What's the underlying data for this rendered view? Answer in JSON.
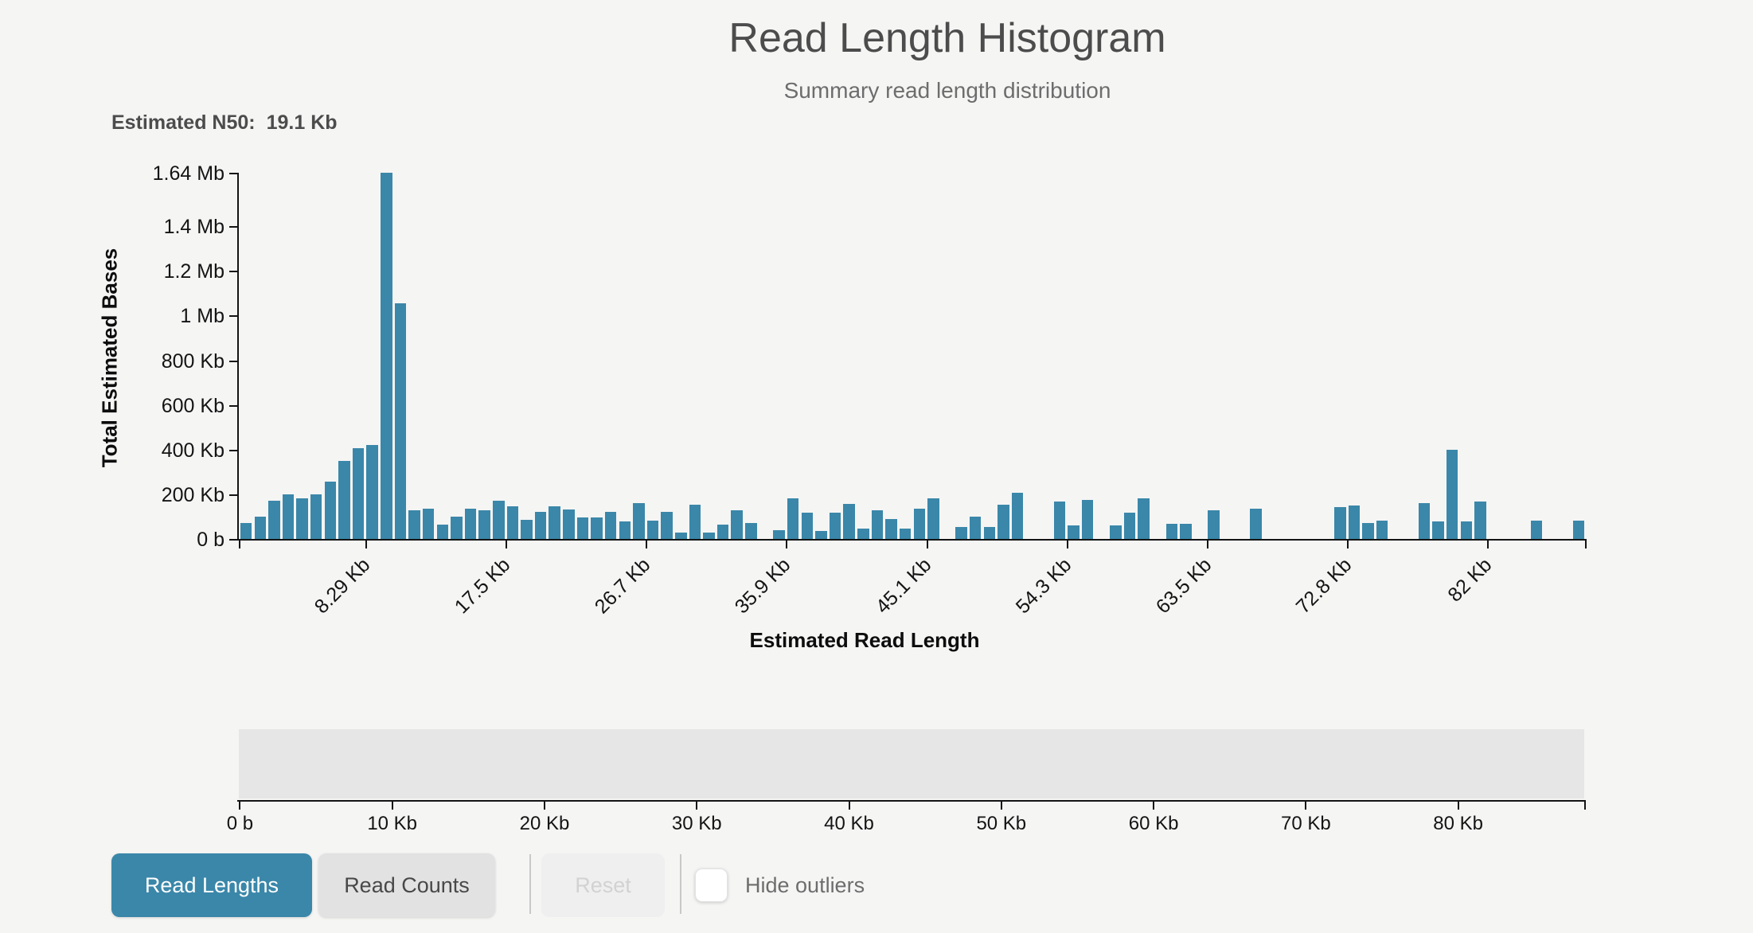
{
  "header": {
    "title": "Read Length Histogram",
    "subtitle": "Summary read length distribution"
  },
  "n50": {
    "label": "Estimated N50:",
    "value": "19.1 Kb"
  },
  "chart_data": {
    "type": "bar",
    "title": "Read Length Histogram",
    "xlabel": "Estimated Read Length",
    "ylabel": "Total Estimated Bases",
    "bar_color": "#3a87a9",
    "bin_width_kb": 0.921,
    "x_bin_start_kb_step": "bin i spans [i*0.921, (i+1)*0.921] Kb",
    "values_kb": [
      70,
      100,
      170,
      200,
      180,
      200,
      255,
      350,
      405,
      420,
      1640,
      1055,
      130,
      135,
      65,
      100,
      136,
      129,
      172,
      147,
      85,
      122,
      145,
      133,
      95,
      95,
      122,
      79,
      159,
      82,
      121,
      30,
      152,
      30,
      65,
      128,
      72,
      0,
      38,
      183,
      118,
      36,
      116,
      158,
      47,
      130,
      89,
      45,
      136,
      180,
      0,
      53,
      101,
      53,
      152,
      208,
      0,
      0,
      166,
      59,
      174,
      0,
      59,
      116,
      181,
      0,
      68,
      68,
      0,
      129,
      0,
      0,
      136,
      0,
      0,
      0,
      0,
      0,
      143,
      148,
      72,
      81,
      0,
      0,
      160,
      80,
      400,
      80,
      166,
      0,
      0,
      0,
      83,
      0,
      0,
      83
    ],
    "y_ticks": [
      {
        "label": "0 b",
        "kb": 0
      },
      {
        "label": "200 Kb",
        "kb": 200
      },
      {
        "label": "400 Kb",
        "kb": 400
      },
      {
        "label": "600 Kb",
        "kb": 600
      },
      {
        "label": "800 Kb",
        "kb": 800
      },
      {
        "label": "1 Mb",
        "kb": 1000
      },
      {
        "label": "1.2 Mb",
        "kb": 1200
      },
      {
        "label": "1.4 Mb",
        "kb": 1400
      },
      {
        "label": "1.64 Mb",
        "kb": 1640
      }
    ],
    "x_ticks": [
      {
        "label": "8.29 Kb",
        "kb": 8.29
      },
      {
        "label": "17.5 Kb",
        "kb": 17.5
      },
      {
        "label": "26.7 Kb",
        "kb": 26.71
      },
      {
        "label": "35.9 Kb",
        "kb": 35.92
      },
      {
        "label": "45.1 Kb",
        "kb": 45.13
      },
      {
        "label": "54.3 Kb",
        "kb": 54.34
      },
      {
        "label": "63.5 Kb",
        "kb": 63.55
      },
      {
        "label": "72.8 Kb",
        "kb": 72.76
      },
      {
        "label": "82 Kb",
        "kb": 81.97
      }
    ],
    "ylim_kb": [
      0,
      1640
    ],
    "xlim_kb": [
      0,
      88.4
    ],
    "grid": false,
    "legend": "none"
  },
  "slider": {
    "ticks": [
      {
        "label": "0 b",
        "kb": 0
      },
      {
        "label": "10 Kb",
        "kb": 10
      },
      {
        "label": "20 Kb",
        "kb": 20
      },
      {
        "label": "30 Kb",
        "kb": 30
      },
      {
        "label": "40 Kb",
        "kb": 40
      },
      {
        "label": "50 Kb",
        "kb": 50
      },
      {
        "label": "60 Kb",
        "kb": 60
      },
      {
        "label": "70 Kb",
        "kb": 70
      },
      {
        "label": "80 Kb",
        "kb": 80
      }
    ],
    "xlim_kb": [
      0,
      88.4
    ]
  },
  "toolbar": {
    "read_lengths_label": "Read Lengths",
    "read_counts_label": "Read Counts",
    "reset_label": "Reset",
    "hide_outliers_label": "Hide outliers",
    "active_button": "Read Lengths",
    "checkbox_checked": false
  },
  "colors": {
    "background": "#f5f5f4",
    "bar": "#3a87a9",
    "active_button": "#3a87a9",
    "brush_track": "#e6e6e7",
    "axis": "#141414",
    "title_text": "#4c4c4c",
    "subtitle_text": "#6d6d6d"
  }
}
